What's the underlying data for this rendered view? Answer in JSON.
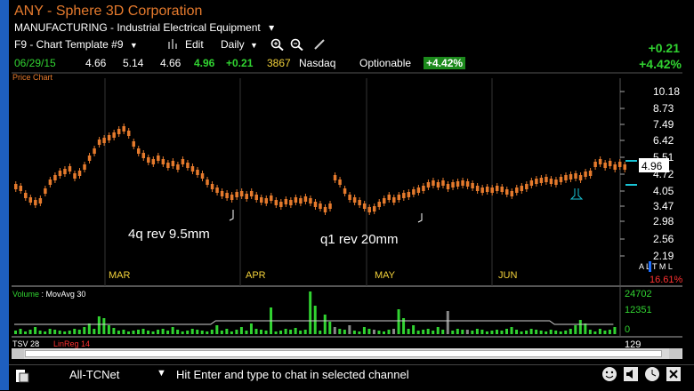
{
  "header": {
    "title": "ANY - Sphere 3D Corporation",
    "sector": "MANUFACTURING - Industrial Electrical Equipment",
    "sector_dropdown": "▾"
  },
  "toolbar": {
    "template": "F9 - Chart Template #9",
    "edit": "Edit",
    "period": "Daily"
  },
  "quote": {
    "date": "06/29/15",
    "open": "4.66",
    "high": "5.14",
    "low": "4.66",
    "close": "4.96",
    "change": "+0.21",
    "volume": "3867",
    "exchange": "Nasdaq",
    "optionable": "Optionable",
    "pct_badge": "+4.42%"
  },
  "change_summary": {
    "abs": "+0.21",
    "pct": "+4.42%"
  },
  "price_chart_label": "Price Chart",
  "annotations": {
    "note1": "4q rev 9.5mm",
    "note2": "q1 rev 20mm"
  },
  "price_axis": [
    "10.18",
    "8.73",
    "7.49",
    "6.42",
    "5.51",
    "4.72",
    "4.05",
    "3.47",
    "2.98",
    "2.56",
    "2.19"
  ],
  "current_price_tag": "4.96",
  "months": [
    "MAR",
    "APR",
    "MAY",
    "JUN"
  ],
  "side_labels": {
    "altml": "A L T M L",
    "pct": "16.61%"
  },
  "volume_panel": {
    "label": "Volume",
    "ma_label": "MovAvg 30",
    "axis": [
      "24702",
      "12351",
      "0"
    ]
  },
  "tsv_panel": {
    "label": "TSV 28",
    "linreg": "LinReg 14",
    "value": "129"
  },
  "chat": {
    "network": "All-TCNet",
    "prompt": "Hit Enter and type to chat in selected channel"
  },
  "colors": {
    "candle": "#e57a2d",
    "up_volume": "#31d331",
    "neutral_volume": "#888888",
    "month": "#f2d13a",
    "ticker": "#e57a2d"
  }
}
